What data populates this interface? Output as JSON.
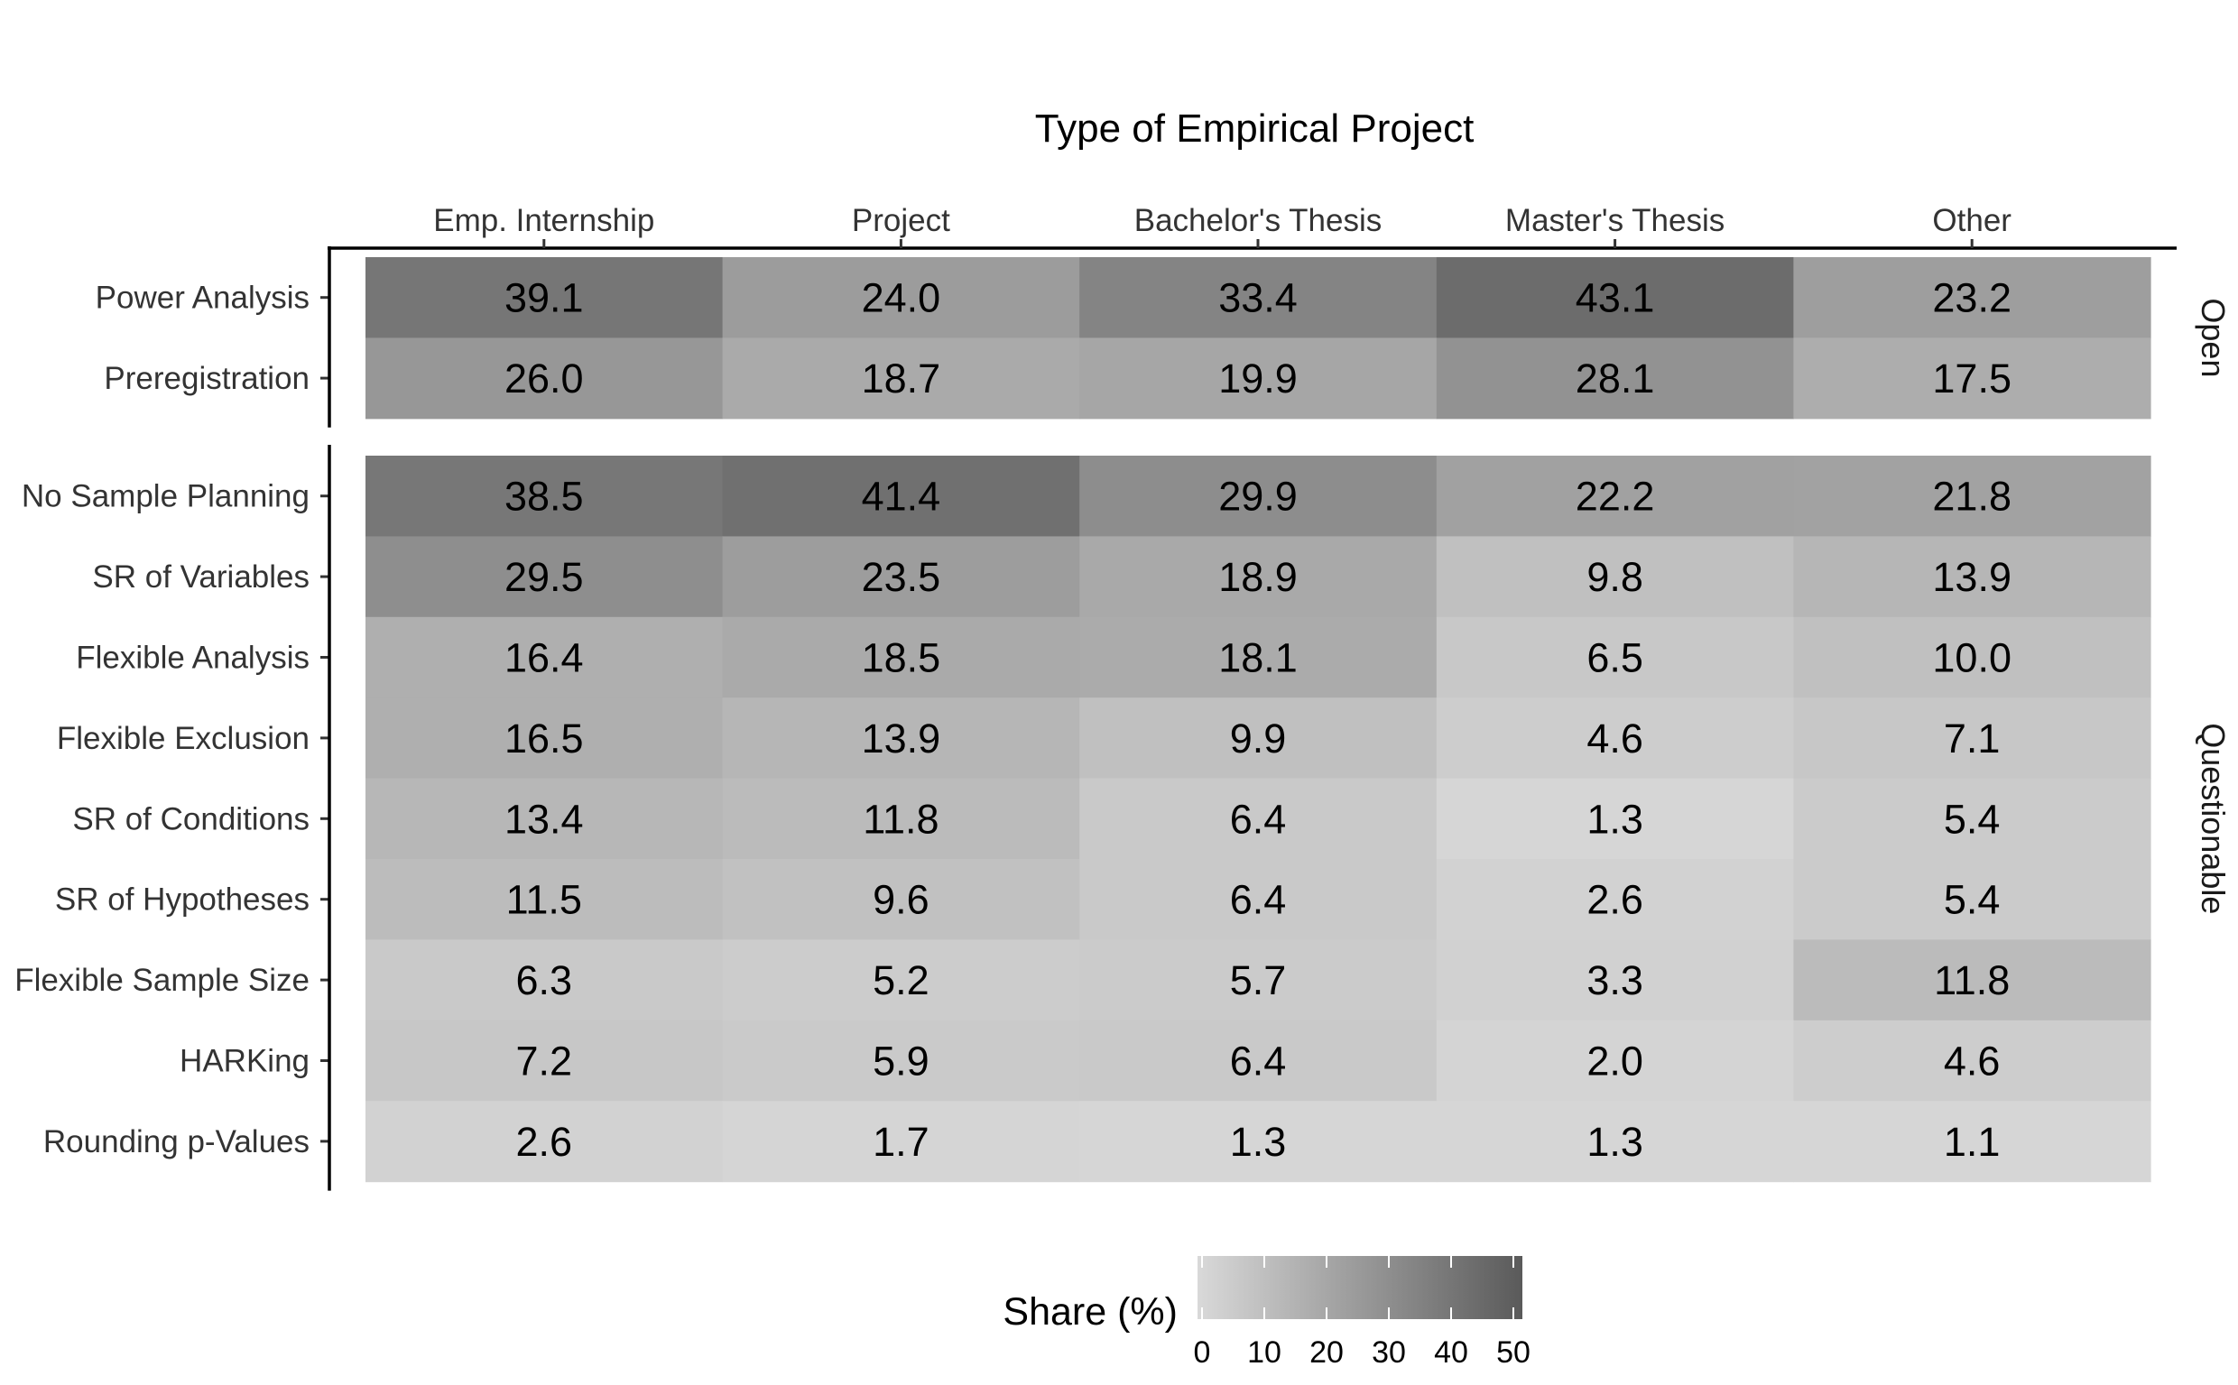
{
  "chart_data": {
    "type": "heatmap",
    "title": "Type of Empirical Project",
    "columns": [
      "Emp. Internship",
      "Project",
      "Bachelor's Thesis",
      "Master's Thesis",
      "Other"
    ],
    "panels": [
      {
        "name": "Open",
        "rows": [
          "Power Analysis",
          "Preregistration"
        ],
        "values": [
          [
            39.1,
            24.0,
            33.4,
            43.1,
            23.2
          ],
          [
            26.0,
            18.7,
            19.9,
            28.1,
            17.5
          ]
        ]
      },
      {
        "name": "Questionable",
        "rows": [
          "No Sample Planning",
          "SR of Variables",
          "Flexible Analysis",
          "Flexible Exclusion",
          "SR of Conditions",
          "SR of Hypotheses",
          "Flexible Sample Size",
          "HARKing",
          "Rounding p-Values"
        ],
        "values": [
          [
            38.5,
            41.4,
            29.9,
            22.2,
            21.8
          ],
          [
            29.5,
            23.5,
            18.9,
            9.8,
            13.9
          ],
          [
            16.4,
            18.5,
            18.1,
            6.5,
            10.0
          ],
          [
            16.5,
            13.9,
            9.9,
            4.6,
            7.1
          ],
          [
            13.4,
            11.8,
            6.4,
            1.3,
            5.4
          ],
          [
            11.5,
            9.6,
            6.4,
            2.6,
            5.4
          ],
          [
            6.3,
            5.2,
            5.7,
            3.3,
            11.8
          ],
          [
            7.2,
            5.9,
            6.4,
            2.0,
            4.6
          ],
          [
            2.6,
            1.7,
            1.3,
            1.3,
            1.1
          ]
        ]
      }
    ],
    "legend": {
      "title": "Share (%)",
      "ticks": [
        0,
        10,
        20,
        30,
        40,
        50
      ],
      "range": [
        0,
        50
      ],
      "low_color": "#d9d9d9",
      "high_color": "#5a5a5a",
      "placement": "bottom"
    },
    "colors": {
      "low": "#d9d9d9",
      "high": "#5a5a5a"
    },
    "grid": false
  }
}
